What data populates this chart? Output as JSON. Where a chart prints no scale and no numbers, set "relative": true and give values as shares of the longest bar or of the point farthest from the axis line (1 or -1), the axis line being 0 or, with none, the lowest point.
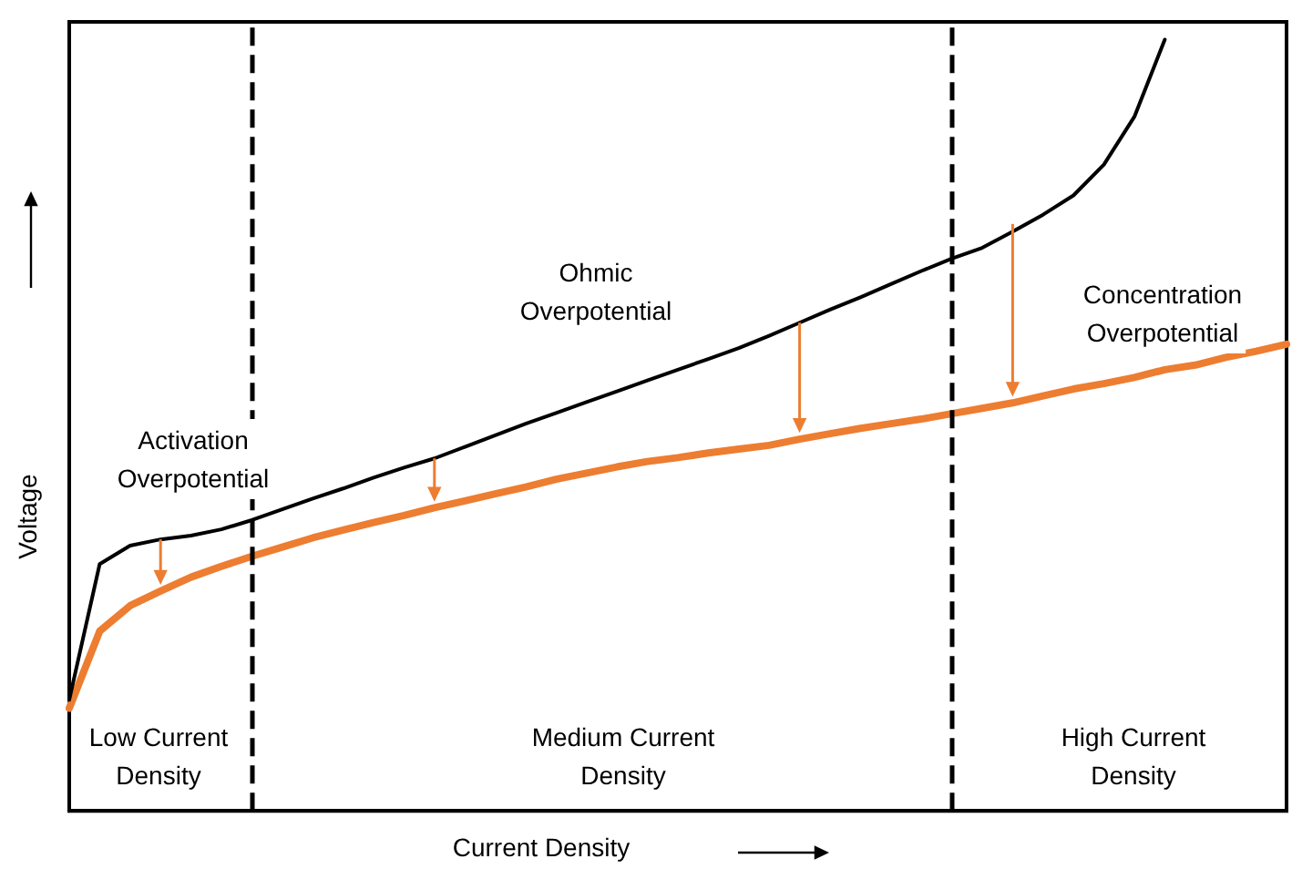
{
  "chart_data": {
    "type": "line",
    "relative": true,
    "xlabel": "Current Density",
    "ylabel": "Voltage",
    "grid": false,
    "marker": "none",
    "line_style": "solid",
    "categories": [
      null,
      null,
      null,
      null,
      null,
      null,
      null,
      null,
      null,
      null,
      null,
      null,
      null,
      null,
      null,
      null,
      null,
      null,
      null,
      null,
      null,
      null,
      null,
      null,
      null,
      null,
      null,
      null,
      null,
      null,
      null,
      null,
      null,
      null,
      null,
      null,
      null,
      null,
      null,
      null,
      null
    ],
    "series": [
      {
        "color": "#000000",
        "values": [
          0.144,
          0.32,
          0.344,
          0.352,
          0.357,
          0.365,
          0.377,
          0.391,
          0.405,
          0.418,
          0.432,
          0.445,
          0.457,
          0.472,
          0.487,
          0.502,
          0.516,
          0.53,
          0.544,
          0.558,
          0.572,
          0.586,
          0.6,
          0.616,
          0.633,
          0.65,
          0.666,
          0.683,
          0.7,
          0.716,
          0.73,
          0.751,
          0.773,
          0.798,
          0.838,
          0.9,
          1,
          null,
          null,
          null,
          null
        ]
      },
      {
        "color": "#ed7d31",
        "values": [
          0.133,
          0.233,
          0.266,
          0.285,
          0.303,
          0.317,
          0.33,
          0.342,
          0.354,
          0.364,
          0.374,
          0.383,
          0.393,
          0.402,
          0.411,
          0.42,
          0.43,
          0.438,
          0.446,
          0.453,
          0.458,
          0.464,
          0.469,
          0.474,
          0.482,
          0.489,
          0.496,
          0.502,
          0.508,
          0.515,
          0.522,
          0.529,
          0.538,
          0.547,
          0.554,
          0.562,
          0.572,
          0.578,
          0.588,
          0.596,
          0.605
        ]
      }
    ],
    "annotations": [
      "Activation\nOverpotential",
      "Ohmic\nOverpotential",
      "Concentration\nOverpotential",
      "Low Current\nDensity",
      "Medium Current\nDensity",
      "High Current\nDensity"
    ]
  }
}
